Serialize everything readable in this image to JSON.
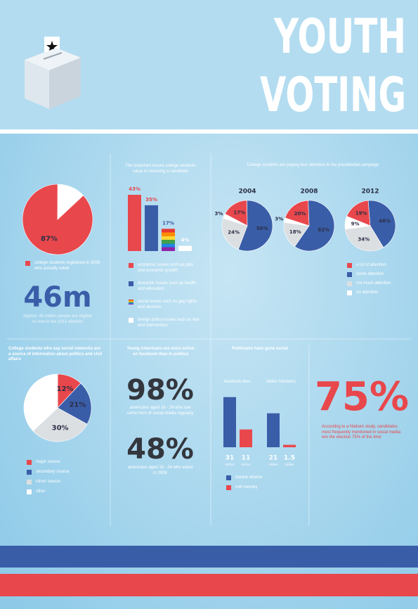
{
  "header": {
    "title_lines": [
      "YOUTH",
      "VOTING"
    ]
  },
  "registered": {
    "type": "pie",
    "values": [
      87,
      13
    ],
    "value_labels": [
      "87%",
      null
    ],
    "colors": [
      "#e8474c",
      "#ffffff"
    ],
    "legend": "college students registered in 2008 who actually voted"
  },
  "eligible": {
    "stat": "46m",
    "caption": "Approx. 46 million people are eligible to vote in the 2012 election"
  },
  "issues": {
    "type": "bar",
    "title": "The important issues college students value in choosing a candidate",
    "categories": [
      "economic issues such as jobs and economic growth",
      "domestic issues such as health and education",
      "social issues such as gay rights and abortion",
      "foreign policy issues such as war and intervention"
    ],
    "values": [
      43,
      35,
      17,
      4
    ],
    "value_labels": [
      "43%",
      "35%",
      "17%",
      "4%"
    ],
    "colors": [
      "#e8474c",
      "#3a5da8",
      [
        "#e53935",
        "#fb8c00",
        "#fdd835",
        "#43a047",
        "#1e88e5",
        "#8e24aa"
      ],
      "#ffffff"
    ]
  },
  "attention": {
    "type": "pie",
    "title": "College students are paying less attention to the presidential campaign",
    "categories": [
      "a lot of attention",
      "some attention",
      "not much attention",
      "no attention"
    ],
    "colors": [
      "#e8474c",
      "#3a5da8",
      "#dcdfe2",
      "#ffffff"
    ],
    "series": [
      {
        "name": "2004",
        "values": [
          17,
          56,
          24,
          3
        ],
        "value_labels": [
          "17%",
          "56%",
          "24%",
          "3%"
        ]
      },
      {
        "name": "2008",
        "values": [
          20,
          62,
          18,
          3
        ],
        "value_labels": [
          "20%",
          "62%",
          "18%",
          "3%"
        ]
      },
      {
        "name": "2012",
        "values": [
          19,
          46,
          34,
          9
        ],
        "value_labels": [
          "19%",
          "46%",
          "34%",
          "9%"
        ]
      }
    ]
  },
  "networks": {
    "type": "pie",
    "title": "College students who say social networks are a source of information about politics and civil affairs",
    "categories": [
      "major source",
      "secondary source",
      "minor source",
      "other"
    ],
    "colors": [
      "#e8474c",
      "#3a5da8",
      "#dcdfe2",
      "#ffffff"
    ],
    "values": [
      12,
      21,
      30,
      37
    ],
    "value_labels": [
      "12%",
      "21%",
      "30%",
      null
    ]
  },
  "facebook": {
    "title": "Young Americans are more active on facebook than in politics",
    "stats": [
      {
        "value": "98%",
        "caption": "americans aged 18 - 24 who use some form of social media regularly"
      },
      {
        "value": "48%",
        "caption": "americans aged 18 - 24 who voted in 2008"
      }
    ]
  },
  "social": {
    "type": "bar",
    "title": "Politicians have gone social",
    "categories": [
      "facebook likes",
      "twitter followers"
    ],
    "unit": "million",
    "series": [
      {
        "name": "barack obama",
        "color": "#3a5da8",
        "values": [
          31,
          21
        ]
      },
      {
        "name": "mitt romney",
        "color": "#e8474c",
        "values": [
          11,
          1.5
        ]
      }
    ]
  },
  "nielsen": {
    "stat": "75%",
    "caption": "According to a Nielsen study, candidates most frequently mentioned in social media win the election 75% of the time"
  }
}
